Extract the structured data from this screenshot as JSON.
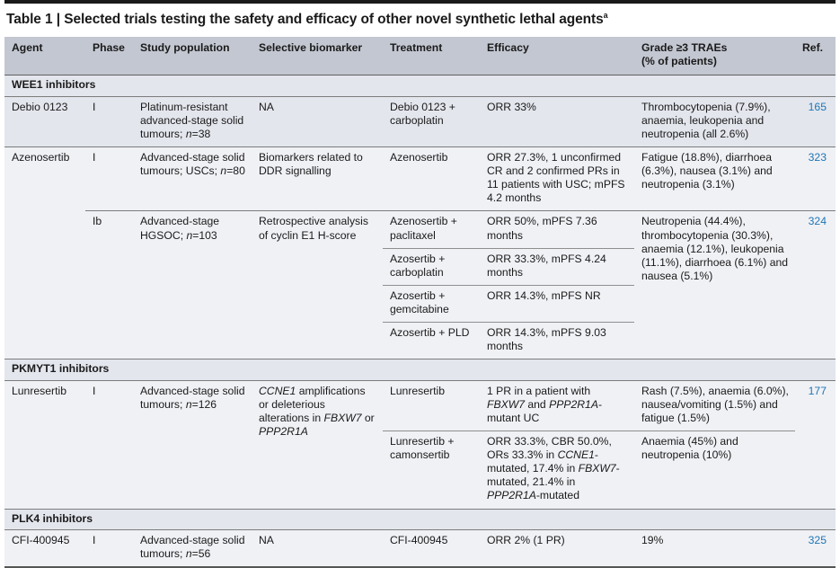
{
  "page": {
    "title": "Table 1 | Selected trials testing the safety and efficacy of other novel synthetic lethal agents",
    "footnote_marker": "a"
  },
  "colors": {
    "header_bg": "#c3c7d1",
    "section_bg": "#e3e6ed",
    "shaded_row_bg": "#e3e6ed",
    "light_row_bg": "#f0f1f5",
    "ref_link_blue": "#1d76b5",
    "rule_dark": "#7c7c7c"
  },
  "table": {
    "header": {
      "agent": "Agent",
      "phase": "Phase",
      "study": "Study population",
      "biomarker": "Selective biomarker",
      "treatment": "Treatment",
      "efficacy": "Efficacy",
      "traes": "Grade ≥3 TRAEs\n(% of patients)",
      "ref": "Ref."
    },
    "sections": [
      {
        "label": "WEE1 inhibitors",
        "rows": [
          {
            "agent": "Debio 0123",
            "phase": "I",
            "study": [
              {
                "t": "Platinum-resistant advanced-stage solid tumours; "
              },
              {
                "t": "n",
                "i": true
              },
              {
                "t": "=38"
              }
            ],
            "biomarker": [
              {
                "t": "NA"
              }
            ],
            "treatment": "Debio 0123 + carboplatin",
            "efficacy": [
              {
                "t": "ORR 33%"
              }
            ],
            "traes": "Thrombocytopenia (7.9%), anaemia, leukopenia and neutropenia (all 2.6%)",
            "ref": "165"
          },
          {
            "agent": "Azenosertib",
            "phase": "I",
            "study": [
              {
                "t": "Advanced-stage solid tumours; USCs; "
              },
              {
                "t": "n",
                "i": true
              },
              {
                "t": "=80"
              }
            ],
            "biomarker": [
              {
                "t": "Biomarkers related to DDR signalling"
              }
            ],
            "treatment": "Azenosertib",
            "efficacy": [
              {
                "t": "ORR 27.3%, 1 unconfirmed CR and 2 confirmed PRs in 11 patients with USC; mPFS 4.2 months"
              }
            ],
            "traes": "Fatigue (18.8%), diarrhoea (6.3%), nausea (3.1%) and neutropenia (3.1%)",
            "ref": "323"
          },
          {
            "phase": "Ib",
            "study": [
              {
                "t": "Advanced-stage HGSOC; "
              },
              {
                "t": "n",
                "i": true
              },
              {
                "t": "=103"
              }
            ],
            "biomarker": [
              {
                "t": "Retrospective analysis of cyclin E1 H-score"
              }
            ],
            "subrows": [
              {
                "treatment": "Azenosertib + paclitaxel",
                "efficacy": [
                  {
                    "t": "ORR 50%, mPFS 7.36 months"
                  }
                ]
              },
              {
                "treatment": "Azosertib + carboplatin",
                "efficacy": [
                  {
                    "t": "ORR 33.3%, mPFS 4.24 months"
                  }
                ]
              },
              {
                "treatment": "Azosertib + gemcitabine",
                "efficacy": [
                  {
                    "t": "ORR 14.3%, mPFS NR"
                  }
                ]
              },
              {
                "treatment": "Azosertib + PLD",
                "efficacy": [
                  {
                    "t": "ORR 14.3%, mPFS 9.03 months"
                  }
                ]
              }
            ],
            "traes": "Neutropenia (44.4%), thrombocytopenia (30.3%), anaemia (12.1%), leukopenia (11.1%), diarrhoea (6.1%) and nausea (5.1%)",
            "ref": "324"
          }
        ]
      },
      {
        "label": "PKMYT1 inhibitors",
        "rows": [
          {
            "agent": "Lunresertib",
            "phase": "I",
            "study": [
              {
                "t": "Advanced-stage solid tumours; "
              },
              {
                "t": "n",
                "i": true
              },
              {
                "t": "=126"
              }
            ],
            "biomarker": [
              {
                "t": "CCNE1",
                "i": true
              },
              {
                "t": " amplifications or deleterious alterations in "
              },
              {
                "t": "FBXW7",
                "i": true
              },
              {
                "t": " or "
              },
              {
                "t": "PPP2R1A",
                "i": true
              }
            ],
            "subrows": [
              {
                "treatment": "Lunresertib",
                "efficacy": [
                  {
                    "t": "1 PR in a patient with "
                  },
                  {
                    "t": "FBXW7",
                    "i": true
                  },
                  {
                    "t": " and "
                  },
                  {
                    "t": "PPP2R1A",
                    "i": true
                  },
                  {
                    "t": "-mutant UC"
                  }
                ],
                "traes": "Rash (7.5%), anaemia (6.0%), nausea/vomiting (1.5%) and fatigue (1.5%)"
              },
              {
                "treatment": "Lunresertib + camonsertib",
                "efficacy": [
                  {
                    "t": "ORR 33.3%, CBR 50.0%, ORs 33.3% in "
                  },
                  {
                    "t": "CCNE1",
                    "i": true
                  },
                  {
                    "t": "-mutated, 17.4% in "
                  },
                  {
                    "t": "FBXW7",
                    "i": true
                  },
                  {
                    "t": "-mutated, 21.4% in "
                  },
                  {
                    "t": "PPP2R1A",
                    "i": true
                  },
                  {
                    "t": "-mutated"
                  }
                ],
                "traes": "Anaemia (45%) and neutropenia (10%)"
              }
            ],
            "ref": "177"
          }
        ]
      },
      {
        "label": "PLK4 inhibitors",
        "rows": [
          {
            "agent": "CFI-400945",
            "phase": "I",
            "study": [
              {
                "t": "Advanced-stage solid tumours; "
              },
              {
                "t": "n",
                "i": true
              },
              {
                "t": "=56"
              }
            ],
            "biomarker": [
              {
                "t": "NA"
              }
            ],
            "treatment": "CFI-400945",
            "efficacy": [
              {
                "t": "ORR 2% (1 PR)"
              }
            ],
            "traes": "19%",
            "ref": "325"
          }
        ]
      }
    ]
  }
}
